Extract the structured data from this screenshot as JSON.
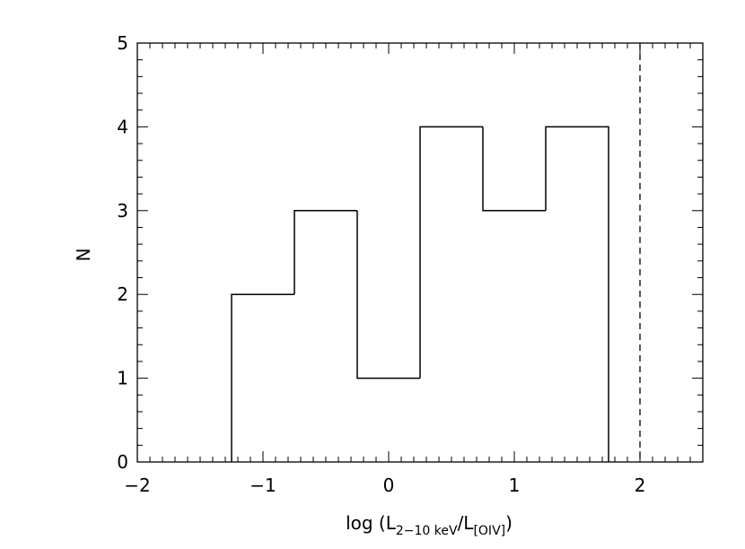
{
  "chart_data": {
    "type": "histogram",
    "title": "",
    "xlabel": {
      "prefix": "log (L",
      "num_sub": "2−10 keV",
      "slash": "/L",
      "den_sub": "[OIV]",
      "suffix": ")"
    },
    "ylabel": "N",
    "xlim": [
      -2,
      2.5
    ],
    "ylim": [
      0,
      5
    ],
    "x_ticks": [
      -2,
      -1,
      0,
      1,
      2
    ],
    "y_ticks": [
      0,
      1,
      2,
      3,
      4,
      5
    ],
    "x_tick_labels": [
      "−2",
      "−1",
      "0",
      "1",
      "2"
    ],
    "y_tick_labels": [
      "0",
      "1",
      "2",
      "3",
      "4",
      "5"
    ],
    "bin_edges": [
      -1.25,
      -0.75,
      -0.25,
      0.25,
      0.75,
      1.25,
      1.75
    ],
    "counts": [
      2,
      3,
      1,
      4,
      3,
      4
    ],
    "reference_line": {
      "x": 2,
      "style": "dashed"
    },
    "grid": false,
    "legend": null
  }
}
